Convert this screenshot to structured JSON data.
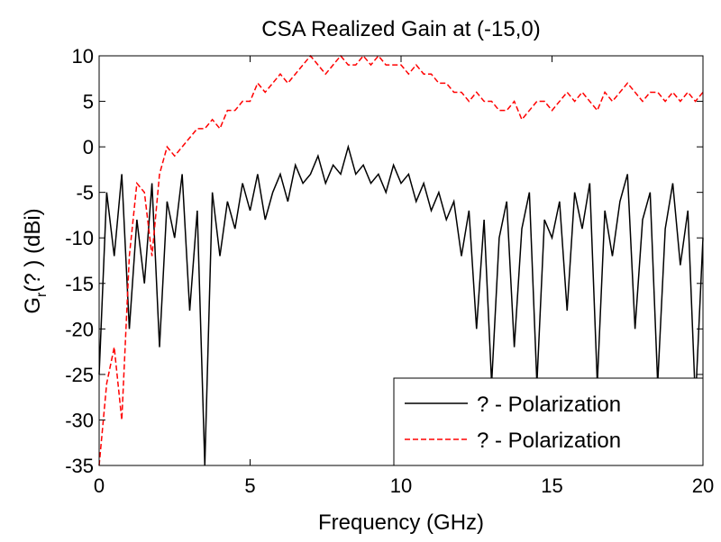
{
  "chart_data": {
    "type": "line",
    "title": "CSA Realized Gain at (-15,0)",
    "x_label": "Frequency (GHz)",
    "y_label": [
      "G",
      "r",
      "(? ) (dBi)"
    ],
    "x": [
      0,
      0.25,
      0.5,
      0.75,
      1,
      1.25,
      1.5,
      1.75,
      2,
      2.25,
      2.5,
      2.75,
      3,
      3.25,
      3.5,
      3.75,
      4,
      4.25,
      4.5,
      4.75,
      5,
      5.25,
      5.5,
      5.75,
      6,
      6.25,
      6.5,
      6.75,
      7,
      7.25,
      7.5,
      7.75,
      8,
      8.25,
      8.5,
      8.75,
      9,
      9.25,
      9.5,
      9.75,
      10,
      10.25,
      10.5,
      10.75,
      11,
      11.25,
      11.5,
      11.75,
      12,
      12.25,
      12.5,
      12.75,
      13,
      13.25,
      13.5,
      13.75,
      14,
      14.25,
      14.5,
      14.75,
      15,
      15.25,
      15.5,
      15.75,
      16,
      16.25,
      16.5,
      16.75,
      17,
      17.25,
      17.5,
      17.75,
      18,
      18.25,
      18.5,
      18.75,
      19,
      19.25,
      19.5,
      19.75,
      20
    ],
    "series": [
      {
        "name": "? - Polarization",
        "color": "#000000",
        "dash": false,
        "values": [
          -25,
          -5,
          -12,
          -3,
          -20,
          -8,
          -15,
          -4,
          -22,
          -6,
          -10,
          -3,
          -18,
          -7,
          -35,
          -5,
          -12,
          -6,
          -9,
          -4,
          -7,
          -3,
          -8,
          -5,
          -3,
          -6,
          -2,
          -4,
          -3,
          -1,
          -4,
          -2,
          -3,
          0,
          -3,
          -2,
          -4,
          -3,
          -5,
          -2,
          -4,
          -3,
          -6,
          -4,
          -7,
          -5,
          -8,
          -6,
          -12,
          -7,
          -20,
          -8,
          -26,
          -10,
          -6,
          -22,
          -9,
          -5,
          -26,
          -8,
          -10,
          -6,
          -18,
          -5,
          -9,
          -4,
          -26,
          -7,
          -12,
          -6,
          -3,
          -20,
          -8,
          -5,
          -26,
          -9,
          -4,
          -13,
          -7,
          -28,
          -10
        ]
      },
      {
        "name": "? - Polarization",
        "color": "#ff0000",
        "dash": true,
        "values": [
          -35,
          -26,
          -22,
          -30,
          -12,
          -4,
          -5,
          -12,
          -3,
          0,
          -1,
          0,
          1,
          2,
          2,
          3,
          2,
          4,
          4,
          5,
          5,
          7,
          6,
          7,
          8,
          7,
          8,
          9,
          10,
          9,
          8,
          9,
          10,
          9,
          9,
          10,
          9,
          10,
          9,
          9,
          9,
          8,
          9,
          8,
          8,
          7,
          7,
          6,
          6,
          5,
          6,
          5,
          5,
          4,
          4,
          5,
          3,
          4,
          5,
          5,
          4,
          5,
          6,
          5,
          6,
          5,
          4,
          6,
          5,
          6,
          7,
          6,
          5,
          6,
          6,
          5,
          6,
          5,
          6,
          5,
          6
        ]
      }
    ],
    "xlim": [
      0,
      20
    ],
    "xticks": [
      0,
      5,
      10,
      15,
      20
    ],
    "ylim": [
      -35,
      10
    ],
    "yticks": [
      -35,
      -30,
      -25,
      -20,
      -15,
      -10,
      -5,
      0,
      5,
      10
    ],
    "grid": false,
    "legend": "lower right"
  }
}
